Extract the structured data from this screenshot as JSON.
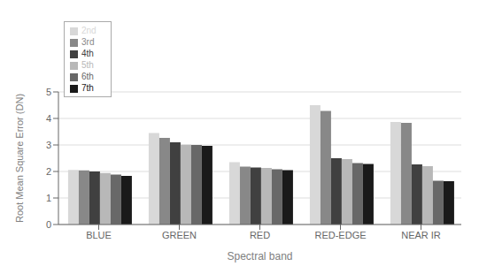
{
  "chart_data": {
    "type": "bar",
    "categories": [
      "BLUE",
      "GREEN",
      "RED",
      "RED-EDGE",
      "NEAR IR"
    ],
    "series": [
      {
        "name": "2nd",
        "color": "#d8d8d8",
        "values": [
          2.06,
          3.45,
          2.35,
          4.5,
          3.87
        ]
      },
      {
        "name": "3rd",
        "color": "#888888",
        "values": [
          2.04,
          3.27,
          2.18,
          4.28,
          3.83
        ]
      },
      {
        "name": "4th",
        "color": "#404040",
        "values": [
          2.0,
          3.1,
          2.15,
          2.5,
          2.27
        ]
      },
      {
        "name": "5th",
        "color": "#b8b8b8",
        "values": [
          1.94,
          3.01,
          2.13,
          2.47,
          2.2
        ]
      },
      {
        "name": "6th",
        "color": "#686868",
        "values": [
          1.88,
          3.0,
          2.08,
          2.32,
          1.65
        ]
      },
      {
        "name": "7th",
        "color": "#1a1a1a",
        "values": [
          1.83,
          2.97,
          2.05,
          2.28,
          1.63
        ]
      }
    ],
    "xlabel": "Spectral band",
    "ylabel": "Root Mean Square Error (DN)",
    "ylim": [
      0,
      5
    ],
    "yticks": [
      0,
      1,
      2,
      3,
      4,
      5
    ],
    "grid": true,
    "legend": "upper left"
  }
}
